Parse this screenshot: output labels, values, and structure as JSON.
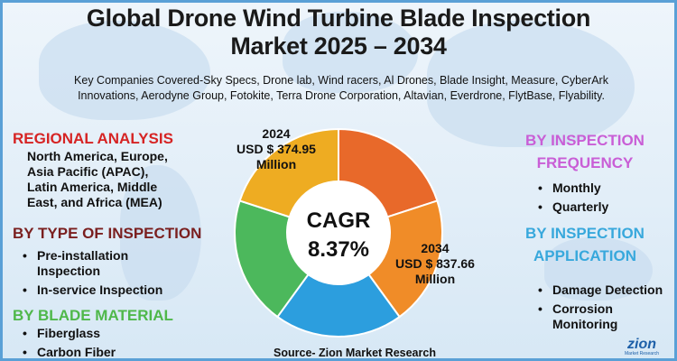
{
  "title_line1": "Global Drone Wind Turbine Blade Inspection",
  "title_line2": "Market 2025 – 2034",
  "companies_line1": "Key Companies Covered-Sky Specs, Drone lab, Wind racers, Al Drones, Blade Insight, Measure, CyberArk",
  "companies_line2": "Innovations, Aerodyne Group, Fotokite, Terra Drone Corporation, Altavian, Everdrone, FlytBase, Flyability.",
  "regional": {
    "heading": "REGIONAL ANALYSIS",
    "line1": "North America, Europe,",
    "line2": "Asia Pacific (APAC),",
    "line3": "Latin America, Middle",
    "line4": "East, and Africa (MEA)"
  },
  "type_of_inspection": {
    "heading": "BY TYPE OF INSPECTION",
    "item1_line1": "Pre-installation",
    "item1_line2": "Inspection",
    "item2": "In-service Inspection"
  },
  "blade_material": {
    "heading": "BY BLADE MATERIAL",
    "items": [
      "Fiberglass",
      "Carbon Fiber"
    ]
  },
  "inspection_frequency": {
    "heading_line1": "BY INSPECTION",
    "heading_line2": "FREQUENCY",
    "items": [
      "Monthly",
      "Quarterly"
    ]
  },
  "inspection_application": {
    "heading_line1": "BY INSPECTION",
    "heading_line2": "APPLICATION",
    "item1": "Damage Detection",
    "item2_line1": "Corrosion",
    "item2_line2": "Monitoring"
  },
  "source": "Source- Zion Market Research",
  "logo": {
    "main": "zion",
    "sub": "Market Research"
  },
  "colors": {
    "regional": "#d62424",
    "type": "#7a1f1f",
    "material": "#4fb84a",
    "frequency": "#c95ed6",
    "application": "#38a8dc"
  },
  "chart_data": {
    "type": "pie",
    "style": "donut",
    "title": "Global Drone Wind Turbine Blade Inspection Market 2025 – 2034",
    "center_label_line1": "CAGR",
    "center_label_line2": "8.37%",
    "cagr_percent": 8.37,
    "annotations": {
      "start": {
        "year": "2024",
        "value_text": "USD $ 374.95",
        "unit": "Million",
        "value": 374.95
      },
      "end": {
        "year": "2034",
        "value_text": "USD $ 837.66",
        "unit": "Million",
        "value": 837.66
      }
    },
    "slices": [
      {
        "name": "dark-orange",
        "value": 20,
        "color": "#e8692a"
      },
      {
        "name": "orange",
        "value": 20,
        "color": "#f08c28"
      },
      {
        "name": "blue",
        "value": 20,
        "color": "#2c9ede"
      },
      {
        "name": "green",
        "value": 20,
        "color": "#4cb85c"
      },
      {
        "name": "yellow",
        "value": 20,
        "color": "#eeac22"
      }
    ]
  }
}
